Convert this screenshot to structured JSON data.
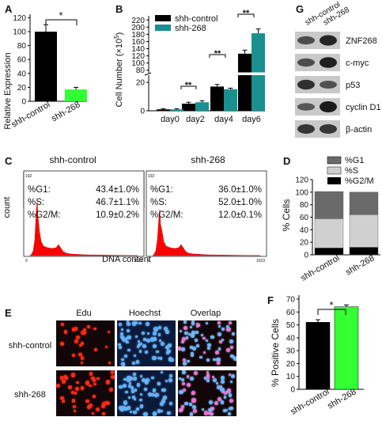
{
  "panels": {
    "A": {
      "letter": "A",
      "ylabel": "Relative Expression",
      "yticks": [
        "0",
        "20",
        "40",
        "60",
        "80",
        "100",
        "120"
      ],
      "sig": "*",
      "chart_data": {
        "type": "bar",
        "categories": [
          "shh-control",
          "shh-268"
        ],
        "values": [
          100,
          17
        ],
        "errors": [
          10,
          3
        ],
        "ylim": [
          0,
          125
        ],
        "colors": [
          "#000000",
          "#33ff33"
        ]
      }
    },
    "B": {
      "letter": "B",
      "ylabel_main": "Cell Number (×10",
      "ylabel_exp": "5",
      "ylabel_end": ")",
      "legend": [
        "shh-control",
        "shh-268"
      ],
      "sig": [
        "**",
        "**",
        "**"
      ],
      "lower_ticks": [
        "0",
        "20"
      ],
      "upper_ticks": [
        "80",
        "100",
        "120",
        "140",
        "160",
        "180",
        "200",
        "220"
      ],
      "chart_data": {
        "type": "bar",
        "categories": [
          "day0",
          "day2",
          "day4",
          "day6"
        ],
        "series": [
          {
            "name": "shh-control",
            "values": [
              1,
              5,
              17,
              126
            ],
            "errors": [
              0.5,
              1,
              1.5,
              10
            ],
            "color": "#000000"
          },
          {
            "name": "shh-268",
            "values": [
              1,
              6,
              27,
              183
            ],
            "errors": [
              0.5,
              1,
              3,
              12
            ],
            "color": "#1a9090"
          }
        ]
      }
    },
    "C": {
      "letter": "C",
      "titles": [
        "shh-control",
        "shh-268"
      ],
      "ylabel": "count",
      "xlabel": "DNA content",
      "ytop": "192",
      "x_left": "0",
      "x_right": "1023",
      "stats": [
        [
          {
            "label": "%G1:",
            "value": "43.4±1.0%"
          },
          {
            "label": "%S:",
            "value": "46.7±1.1%"
          },
          {
            "label": "%G2/M:",
            "value": "10.9±0.2%"
          }
        ],
        [
          {
            "label": "%G1:",
            "value": "36.0±1.0%"
          },
          {
            "label": "%S:",
            "value": "52.0±1.0%"
          },
          {
            "label": "%G2/M:",
            "value": "12.0±0.1%"
          }
        ]
      ]
    },
    "D": {
      "letter": "D",
      "ylabel": "% Cells",
      "yticks": [
        "0",
        "20",
        "40",
        "60",
        "80",
        "100",
        "120"
      ],
      "legend": [
        "%G1",
        "%S",
        "%G2/M"
      ],
      "chart_data": {
        "type": "bar",
        "stacked": true,
        "categories": [
          "shh-control",
          "shh-268"
        ],
        "series": [
          {
            "name": "%G2/M",
            "values": [
              10.9,
              12.0
            ],
            "color": "#000000"
          },
          {
            "name": "%S",
            "values": [
              46.7,
              52.0
            ],
            "color": "#d0d0d0"
          },
          {
            "name": "%G1",
            "values": [
              43.4,
              36.0
            ],
            "color": "#6a6a6a"
          }
        ],
        "ylim": [
          0,
          120
        ]
      }
    },
    "E": {
      "letter": "E",
      "col_labels": [
        "Edu",
        "Hoechst",
        "Overlap"
      ],
      "row_labels": [
        "shh-control",
        "shh-268"
      ]
    },
    "F": {
      "letter": "F",
      "ylabel": "% Positive Cells",
      "yticks": [
        "0",
        "10",
        "20",
        "30",
        "40",
        "50",
        "60",
        "70"
      ],
      "sig": "*",
      "chart_data": {
        "type": "bar",
        "categories": [
          "shh-control",
          "shh-268"
        ],
        "values": [
          52,
          64
        ],
        "errors": [
          2,
          1.5
        ],
        "ylim": [
          0,
          70
        ],
        "colors": [
          "#000000",
          "#33ff33"
        ]
      }
    },
    "G": {
      "letter": "G",
      "lanes": [
        "shh-control",
        "shh-268"
      ],
      "bands": [
        "ZNF268",
        "c-myc",
        "p53",
        "cyclin D1",
        "β-actin"
      ]
    }
  }
}
